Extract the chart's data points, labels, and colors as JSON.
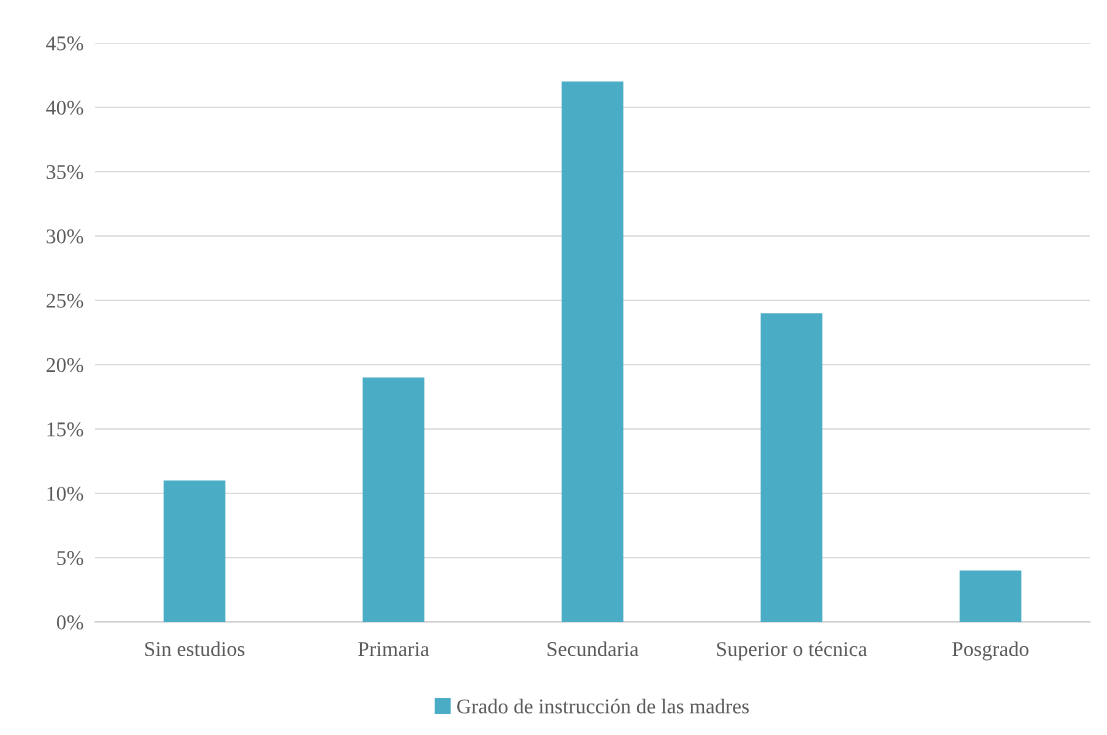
{
  "chart_data": {
    "type": "bar",
    "categories": [
      "Sin estudios",
      "Primaria",
      "Secundaria",
      "Superior o técnica",
      "Posgrado"
    ],
    "series": [
      {
        "name": "Grado de instrucción de las madres",
        "color": "#4bacc6",
        "values": [
          11,
          19,
          42,
          24,
          4
        ]
      }
    ],
    "ylim": [
      0,
      45
    ],
    "yticks": [
      {
        "value": 0,
        "label": "0%"
      },
      {
        "value": 5,
        "label": "5%"
      },
      {
        "value": 10,
        "label": "10%"
      },
      {
        "value": 15,
        "label": "15%"
      },
      {
        "value": 20,
        "label": "20%"
      },
      {
        "value": 25,
        "label": "25%"
      },
      {
        "value": 30,
        "label": "30%"
      },
      {
        "value": 35,
        "label": "35%"
      },
      {
        "value": 40,
        "label": "40%"
      },
      {
        "value": 45,
        "label": "45%"
      }
    ],
    "grid": "y",
    "legend": "bottom"
  }
}
